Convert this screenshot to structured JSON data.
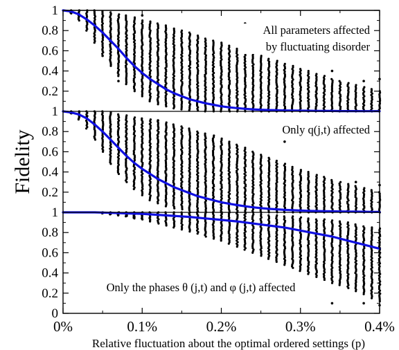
{
  "chart_data": [
    {
      "type": "scatter",
      "annotation_lines": [
        "All parameters affected",
        "by fluctuating disorder"
      ],
      "annotation_position": "top-right",
      "ylim": [
        0,
        1
      ],
      "xlim": [
        0,
        0.4
      ],
      "yticks": [
        0,
        0.2,
        0.4,
        0.6,
        0.8,
        1
      ],
      "ytick_labels": [
        "0.2",
        "0.4",
        "0.6",
        "0.8",
        "1"
      ],
      "series": [
        {
          "type": "line",
          "color": "#1010e0",
          "x": [
            0,
            0.01,
            0.02,
            0.03,
            0.04,
            0.05,
            0.06,
            0.07,
            0.08,
            0.09,
            0.1,
            0.11,
            0.12,
            0.13,
            0.14,
            0.15,
            0.16,
            0.17,
            0.18,
            0.19,
            0.2,
            0.21,
            0.22,
            0.23,
            0.24,
            0.25,
            0.26,
            0.27,
            0.28,
            0.29,
            0.3,
            0.31,
            0.32,
            0.33,
            0.34,
            0.35,
            0.36,
            0.37,
            0.38,
            0.39,
            0.4
          ],
          "y": [
            1.0,
            0.99,
            0.96,
            0.91,
            0.85,
            0.78,
            0.7,
            0.62,
            0.53,
            0.45,
            0.38,
            0.32,
            0.27,
            0.22,
            0.18,
            0.15,
            0.12,
            0.1,
            0.08,
            0.065,
            0.05,
            0.04,
            0.032,
            0.025,
            0.02,
            0.016,
            0.013,
            0.011,
            0.009,
            0.008,
            0.007,
            0.006,
            0.005,
            0.004,
            0.004,
            0.003,
            0.003,
            0.003,
            0.002,
            0.002,
            0.002
          ]
        },
        {
          "type": "scatter",
          "color": "#000000",
          "x": [
            0.01,
            0.02,
            0.03,
            0.04,
            0.05,
            0.06,
            0.07,
            0.08,
            0.09,
            0.1,
            0.11,
            0.12,
            0.13,
            0.14,
            0.15,
            0.16,
            0.17,
            0.18,
            0.19,
            0.2,
            0.21,
            0.22,
            0.23,
            0.24,
            0.25,
            0.26,
            0.27,
            0.28,
            0.29,
            0.3,
            0.31,
            0.32,
            0.33,
            0.34,
            0.35,
            0.36,
            0.37,
            0.38,
            0.39,
            0.4
          ],
          "y_min": [
            0.97,
            0.9,
            0.8,
            0.68,
            0.57,
            0.45,
            0.35,
            0.27,
            0.2,
            0.15,
            0.1,
            0.07,
            0.05,
            0.03,
            0.02,
            0.01,
            0.01,
            0.0,
            0.0,
            0.0,
            0.0,
            0.0,
            0.0,
            0.0,
            0.0,
            0.0,
            0.0,
            0.0,
            0.0,
            0.0,
            0.0,
            0.0,
            0.0,
            0.0,
            0.0,
            0.0,
            0.0,
            0.0,
            0.0,
            0.0
          ],
          "y_max": [
            1.0,
            1.0,
            1.0,
            1.0,
            0.99,
            0.98,
            0.96,
            0.95,
            0.93,
            0.9,
            0.89,
            0.87,
            0.85,
            0.82,
            0.8,
            0.78,
            0.75,
            0.72,
            0.7,
            0.68,
            0.65,
            0.62,
            0.6,
            0.57,
            0.55,
            0.52,
            0.5,
            0.47,
            0.45,
            0.42,
            0.4,
            0.37,
            0.35,
            0.32,
            0.3,
            0.28,
            0.26,
            0.24,
            0.22,
            0.2
          ],
          "outliers": [
            [
              0.05,
              0.55
            ],
            [
              0.07,
              0.3
            ],
            [
              0.1,
              0.95
            ],
            [
              0.23,
              0.87
            ],
            [
              0.29,
              0.62
            ],
            [
              0.34,
              0.4
            ],
            [
              0.38,
              0.3
            ],
            [
              0.4,
              0.32
            ]
          ]
        }
      ]
    },
    {
      "type": "scatter",
      "annotation_lines": [
        "Only q(j,t) affected"
      ],
      "annotation_position": "top-right",
      "ylim": [
        0,
        1
      ],
      "xlim": [
        0,
        0.4
      ],
      "yticks": [
        0,
        0.2,
        0.4,
        0.6,
        0.8,
        1
      ],
      "ytick_labels": [
        "0.2",
        "0.4",
        "0.6",
        "0.8",
        "1"
      ],
      "series": [
        {
          "type": "line",
          "color": "#1010e0",
          "x": [
            0,
            0.01,
            0.02,
            0.03,
            0.04,
            0.05,
            0.06,
            0.07,
            0.08,
            0.09,
            0.1,
            0.11,
            0.12,
            0.13,
            0.14,
            0.15,
            0.16,
            0.17,
            0.18,
            0.19,
            0.2,
            0.21,
            0.22,
            0.23,
            0.24,
            0.25,
            0.26,
            0.27,
            0.28,
            0.29,
            0.3,
            0.31,
            0.32,
            0.33,
            0.34,
            0.35,
            0.36,
            0.37,
            0.38,
            0.39,
            0.4
          ],
          "y": [
            1.0,
            0.99,
            0.97,
            0.93,
            0.87,
            0.8,
            0.72,
            0.64,
            0.56,
            0.49,
            0.43,
            0.38,
            0.33,
            0.29,
            0.25,
            0.22,
            0.19,
            0.16,
            0.14,
            0.12,
            0.1,
            0.085,
            0.072,
            0.06,
            0.05,
            0.042,
            0.035,
            0.03,
            0.025,
            0.021,
            0.018,
            0.015,
            0.013,
            0.011,
            0.01,
            0.009,
            0.008,
            0.007,
            0.006,
            0.005,
            0.005
          ]
        },
        {
          "type": "scatter",
          "color": "#000000",
          "x": [
            0.01,
            0.02,
            0.03,
            0.04,
            0.05,
            0.06,
            0.07,
            0.08,
            0.09,
            0.1,
            0.11,
            0.12,
            0.13,
            0.14,
            0.15,
            0.16,
            0.17,
            0.18,
            0.19,
            0.2,
            0.21,
            0.22,
            0.23,
            0.24,
            0.25,
            0.26,
            0.27,
            0.28,
            0.29,
            0.3,
            0.31,
            0.32,
            0.33,
            0.34,
            0.35,
            0.36,
            0.37,
            0.38,
            0.39,
            0.4
          ],
          "y_min": [
            0.98,
            0.92,
            0.83,
            0.72,
            0.6,
            0.48,
            0.38,
            0.3,
            0.23,
            0.17,
            0.12,
            0.09,
            0.06,
            0.04,
            0.03,
            0.02,
            0.01,
            0.01,
            0.0,
            0.0,
            0.0,
            0.0,
            0.0,
            0.0,
            0.0,
            0.0,
            0.0,
            0.0,
            0.0,
            0.0,
            0.0,
            0.0,
            0.0,
            0.0,
            0.0,
            0.0,
            0.0,
            0.0,
            0.0,
            0.0
          ],
          "y_max": [
            1.0,
            1.0,
            1.0,
            1.0,
            1.0,
            0.99,
            0.97,
            0.96,
            0.94,
            0.93,
            0.92,
            0.9,
            0.89,
            0.87,
            0.85,
            0.83,
            0.8,
            0.78,
            0.76,
            0.73,
            0.7,
            0.67,
            0.64,
            0.6,
            0.57,
            0.54,
            0.51,
            0.48,
            0.45,
            0.42,
            0.4,
            0.37,
            0.35,
            0.32,
            0.3,
            0.28,
            0.26,
            0.24,
            0.22,
            0.2
          ],
          "outliers": [
            [
              0.03,
              0.95
            ],
            [
              0.06,
              0.8
            ],
            [
              0.12,
              0.91
            ],
            [
              0.28,
              0.7
            ],
            [
              0.37,
              0.3
            ],
            [
              0.4,
              0.27
            ]
          ]
        }
      ]
    },
    {
      "type": "scatter",
      "annotation_lines": [
        "Only the phases θ (j,t) and φ (j,t) affected"
      ],
      "annotation_position": "bottom-center",
      "ylim": [
        0,
        1
      ],
      "xlim": [
        0,
        0.4
      ],
      "yticks": [
        0,
        0.2,
        0.4,
        0.6,
        0.8,
        1
      ],
      "ytick_labels": [
        "0",
        "0.2",
        "0.4",
        "0.6",
        "0.8",
        "1"
      ],
      "series": [
        {
          "type": "line",
          "color": "#1010e0",
          "x": [
            0,
            0.02,
            0.04,
            0.06,
            0.08,
            0.1,
            0.12,
            0.14,
            0.16,
            0.18,
            0.2,
            0.22,
            0.24,
            0.26,
            0.28,
            0.3,
            0.32,
            0.34,
            0.36,
            0.38,
            0.4
          ],
          "y": [
            1.0,
            1.0,
            1.0,
            0.995,
            0.99,
            0.985,
            0.975,
            0.965,
            0.955,
            0.94,
            0.925,
            0.91,
            0.89,
            0.87,
            0.85,
            0.82,
            0.79,
            0.76,
            0.72,
            0.68,
            0.64
          ]
        },
        {
          "type": "scatter",
          "color": "#000000",
          "x": [
            0.05,
            0.06,
            0.07,
            0.08,
            0.09,
            0.1,
            0.11,
            0.12,
            0.13,
            0.14,
            0.15,
            0.16,
            0.17,
            0.18,
            0.19,
            0.2,
            0.21,
            0.22,
            0.23,
            0.24,
            0.25,
            0.26,
            0.27,
            0.28,
            0.29,
            0.3,
            0.31,
            0.32,
            0.33,
            0.34,
            0.35,
            0.36,
            0.37,
            0.38,
            0.39,
            0.4
          ],
          "y_min": [
            0.99,
            0.98,
            0.97,
            0.96,
            0.94,
            0.93,
            0.91,
            0.89,
            0.87,
            0.85,
            0.83,
            0.81,
            0.79,
            0.76,
            0.74,
            0.72,
            0.69,
            0.66,
            0.63,
            0.6,
            0.57,
            0.54,
            0.51,
            0.48,
            0.45,
            0.42,
            0.39,
            0.36,
            0.33,
            0.3,
            0.28,
            0.25,
            0.22,
            0.19,
            0.15,
            0.12
          ],
          "y_max": [
            1.0,
            1.0,
            1.0,
            1.0,
            1.0,
            1.0,
            1.0,
            1.0,
            1.0,
            1.0,
            1.0,
            1.0,
            1.0,
            1.0,
            1.0,
            1.0,
            0.99,
            0.99,
            0.99,
            0.98,
            0.98,
            0.97,
            0.97,
            0.96,
            0.96,
            0.95,
            0.94,
            0.93,
            0.93,
            0.92,
            0.91,
            0.9,
            0.88,
            0.86,
            0.85,
            0.84
          ],
          "outliers": [
            [
              0.28,
              0.27
            ],
            [
              0.34,
              0.1
            ],
            [
              0.38,
              0.1
            ],
            [
              0.4,
              0.08
            ]
          ]
        }
      ]
    }
  ],
  "ylabel": "Fidelity",
  "xlabel": "Relative fluctuation about the optimal ordered settings (p)",
  "x_tick_labels": [
    "0%",
    "0.1%",
    "0.2%",
    "0.3%",
    "0.4%"
  ],
  "x_tick_values": [
    0,
    0.1,
    0.2,
    0.3,
    0.4
  ],
  "colors": {
    "line": "#1010e0",
    "points": "#000000",
    "axes": "#000000"
  }
}
